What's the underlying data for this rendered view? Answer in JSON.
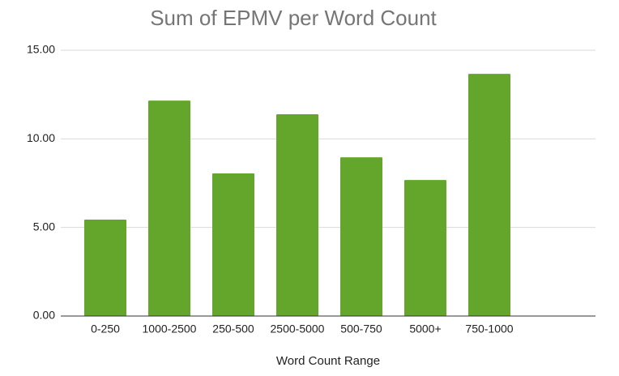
{
  "chart_data": {
    "type": "bar",
    "title": "Sum of EPMV per Word Count",
    "x_label": "Word Count Range",
    "categories": [
      "0-250",
      "1000-2500",
      "250-500",
      "2500-5000",
      "500-750",
      "5000+",
      "750-1000"
    ],
    "values": [
      5.44,
      12.16,
      8.05,
      11.39,
      8.96,
      7.68,
      13.67
    ],
    "color": "#63a62b",
    "ylim": [
      0,
      15
    ],
    "yticks": [
      {
        "value": 0,
        "label": "0.00"
      },
      {
        "value": 5,
        "label": "5.00"
      },
      {
        "value": 10,
        "label": "10.00"
      },
      {
        "value": 15,
        "label": "15.00"
      }
    ],
    "grid": true
  }
}
